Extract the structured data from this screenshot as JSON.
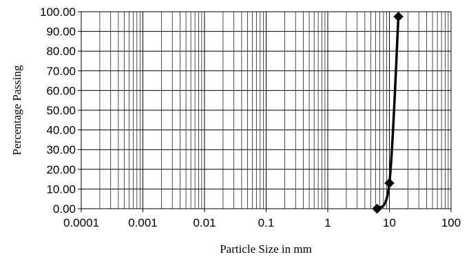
{
  "chart_data": {
    "type": "scatter",
    "title": "",
    "xlabel": "Particle Size in mm",
    "ylabel": "Percentage Passing",
    "xscale": "log",
    "xlim": [
      0.0001,
      100
    ],
    "ylim": [
      0,
      100
    ],
    "x_ticks": [
      "0.0001",
      "0.001",
      "0.01",
      "0.1",
      "1",
      "10",
      "100"
    ],
    "y_ticks": [
      "0.00",
      "10.00",
      "20.00",
      "30.00",
      "40.00",
      "50.00",
      "60.00",
      "70.00",
      "80.00",
      "90.00",
      "100.00"
    ],
    "grid": "on",
    "legend": "none",
    "series": [
      {
        "marker": "diamond",
        "color": "#000000",
        "line": "smooth",
        "points": [
          {
            "x": 6.3,
            "y": 0.0
          },
          {
            "x": 10.0,
            "y": 13.0
          },
          {
            "x": 14.0,
            "y": 97.5
          }
        ]
      }
    ]
  }
}
